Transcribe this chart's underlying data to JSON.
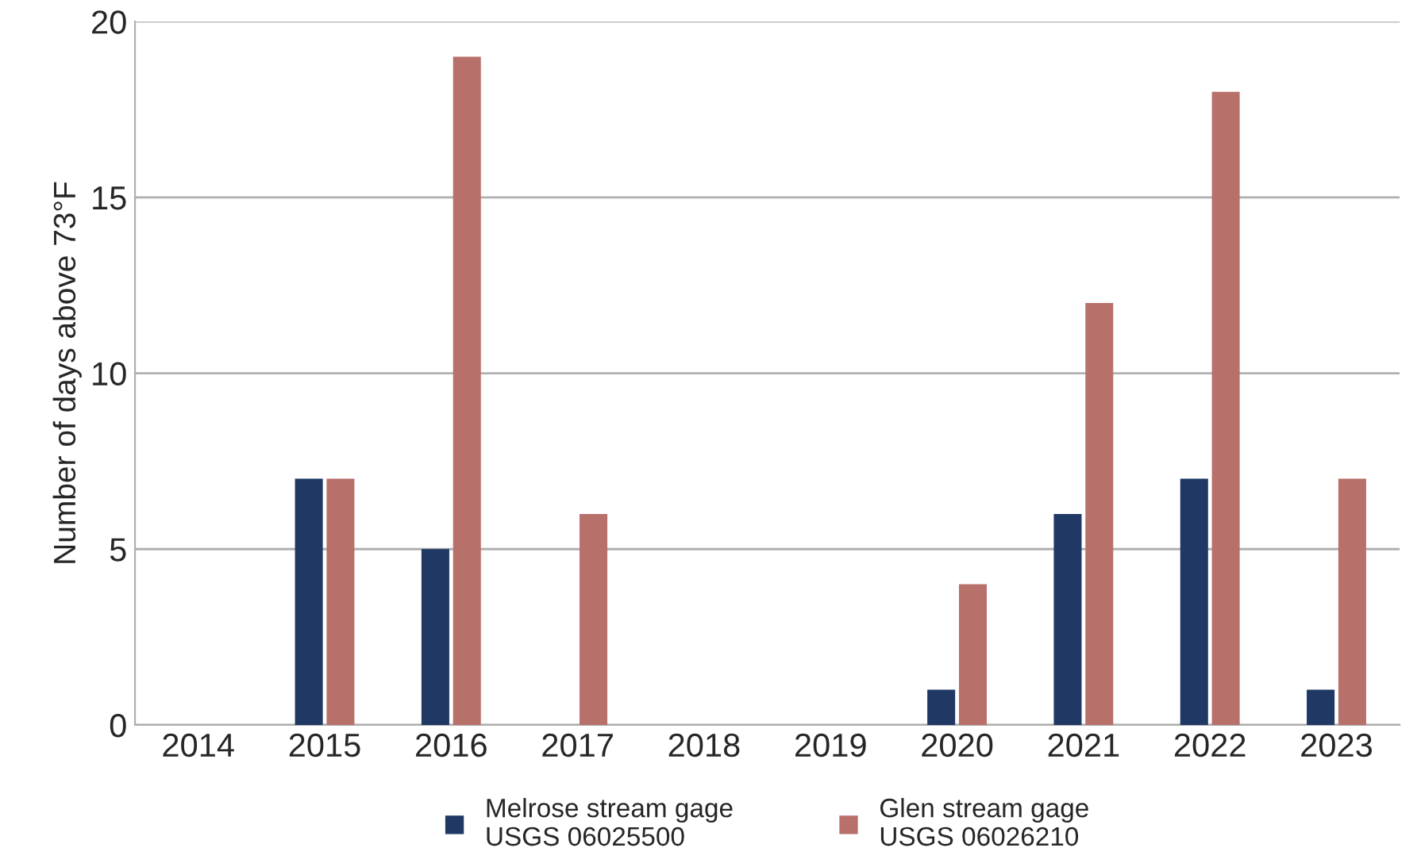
{
  "chart_data": {
    "type": "bar",
    "ylabel": "Number of days above 73°F",
    "categories": [
      "2014",
      "2015",
      "2016",
      "2017",
      "2018",
      "2019",
      "2020",
      "2021",
      "2022",
      "2023"
    ],
    "series": [
      {
        "name": "Melrose stream gage\nUSGS 06025500",
        "color": "#1f3864",
        "values": [
          0,
          7,
          5,
          0,
          0,
          0,
          1,
          6,
          7,
          1
        ]
      },
      {
        "name": "Glen stream gage\nUSGS 06026210",
        "color": "#b8706b",
        "values": [
          0,
          7,
          19,
          6,
          0,
          0,
          4,
          12,
          18,
          7
        ]
      }
    ],
    "ylim": [
      0,
      20
    ],
    "yticks": [
      0,
      5,
      10,
      15,
      20
    ],
    "grid": "y",
    "legend": "bottom"
  }
}
